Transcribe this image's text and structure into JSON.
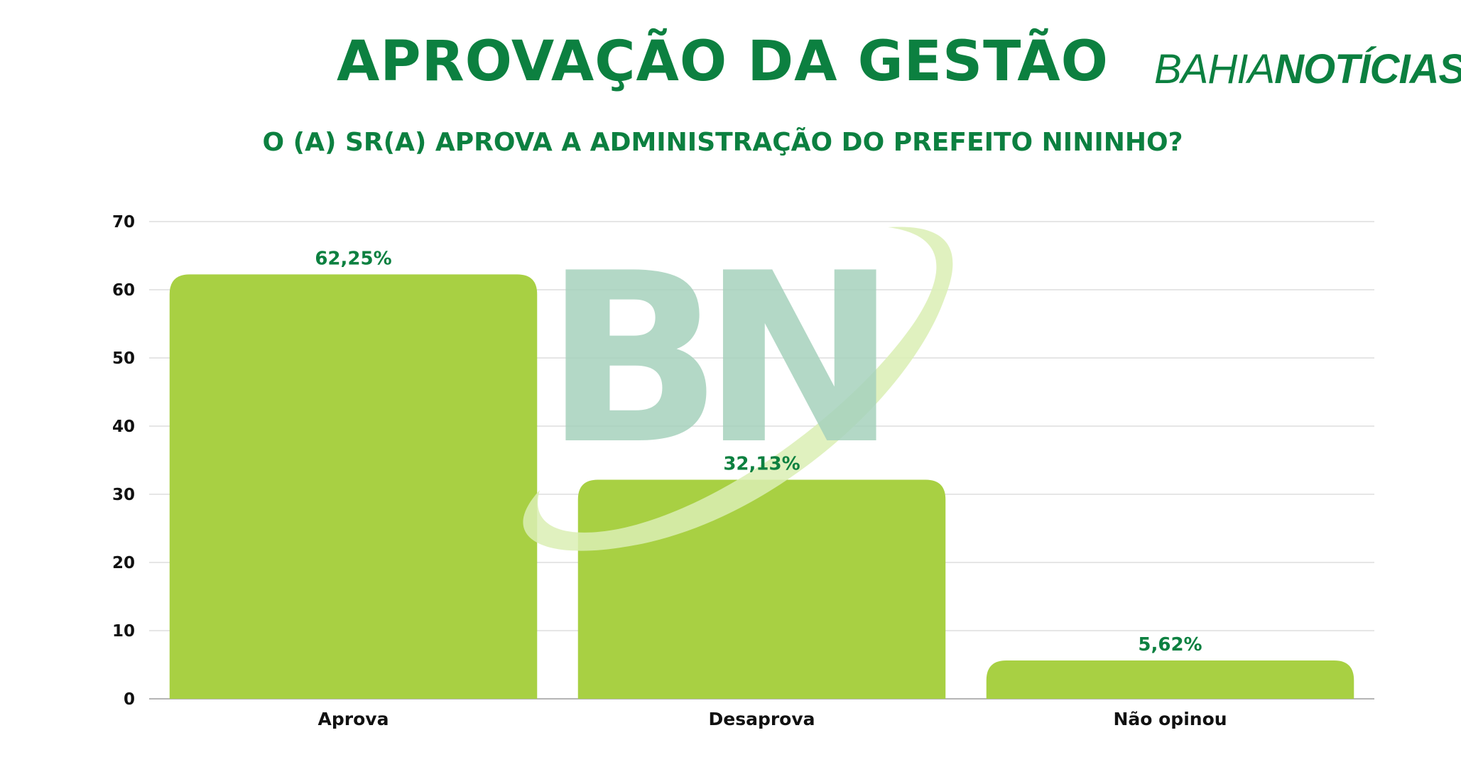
{
  "header": {
    "title": "APROVAÇÃO DA GESTÃO",
    "subtitle": "O (A) SR(A) APROVA A ADMINISTRAÇÃO DO PREFEITO NININHO?",
    "logo_thin": "BAHIA",
    "logo_bold": "NOTÍCIAS",
    "watermark": "BN"
  },
  "colors": {
    "brand_green": "#0c8040",
    "bar_fill": "#a8d043",
    "watermark_letters": "#a6d2bd",
    "watermark_swoosh": "#dbeeb4"
  },
  "chart_data": {
    "type": "bar",
    "categories": [
      "Aprova",
      "Desaprova",
      "Não opinou"
    ],
    "values": [
      62.25,
      32.13,
      5.62
    ],
    "data_labels": [
      "62,25%",
      "32,13%",
      "5,62%"
    ],
    "ylim": [
      0,
      70
    ],
    "yticks": [
      0,
      10,
      20,
      30,
      40,
      50,
      60,
      70
    ],
    "grid": true,
    "xlabel": "",
    "ylabel": ""
  }
}
